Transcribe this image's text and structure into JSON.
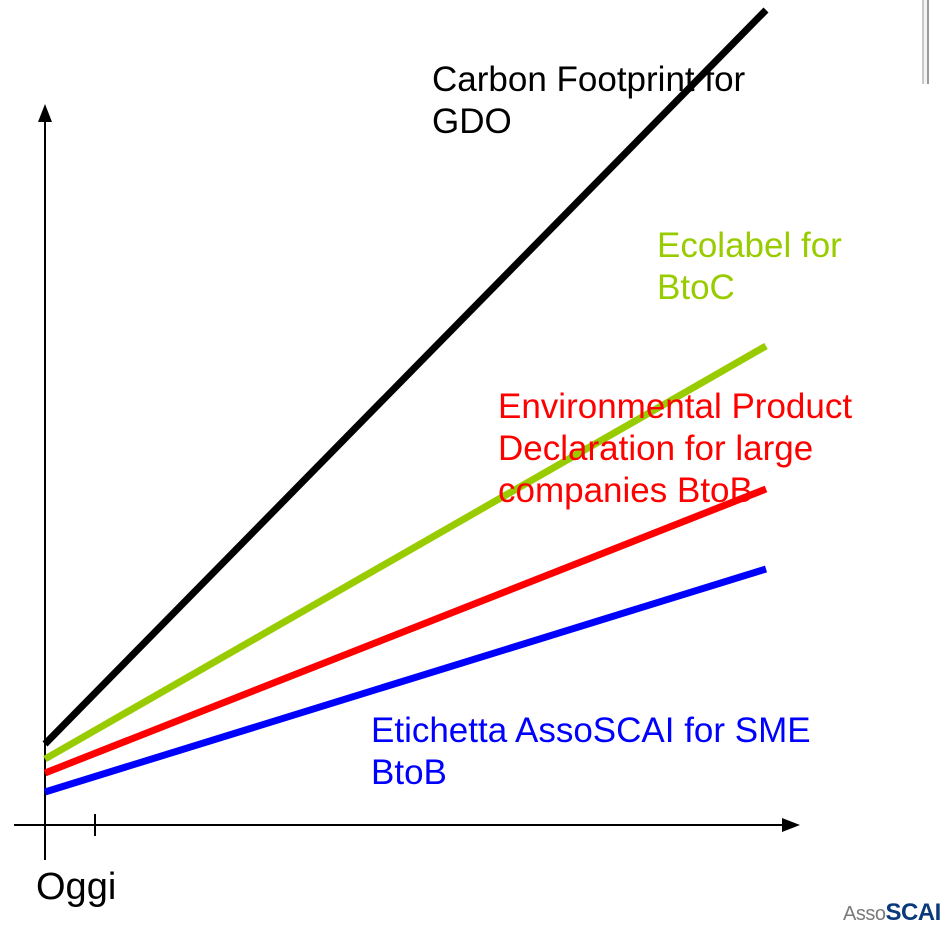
{
  "axis": {
    "origin_label": "Oggi"
  },
  "labels": {
    "carbon": "Carbon Footprint for\nGDO",
    "ecolabel": "Ecolabel for\nBtoC",
    "epd": "Environmental Product\nDeclaration for large\ncompanies BtoB",
    "etichetta": "Etichetta AssoSCAI for SME\nBtoB"
  },
  "colors": {
    "carbon": "#000000",
    "ecolabel": "#99cc00",
    "epd": "#ff0000",
    "etichetta": "#0000ff",
    "axis": "#000000"
  },
  "logo": {
    "prefix": "Asso",
    "suffix": "SCAI"
  }
}
